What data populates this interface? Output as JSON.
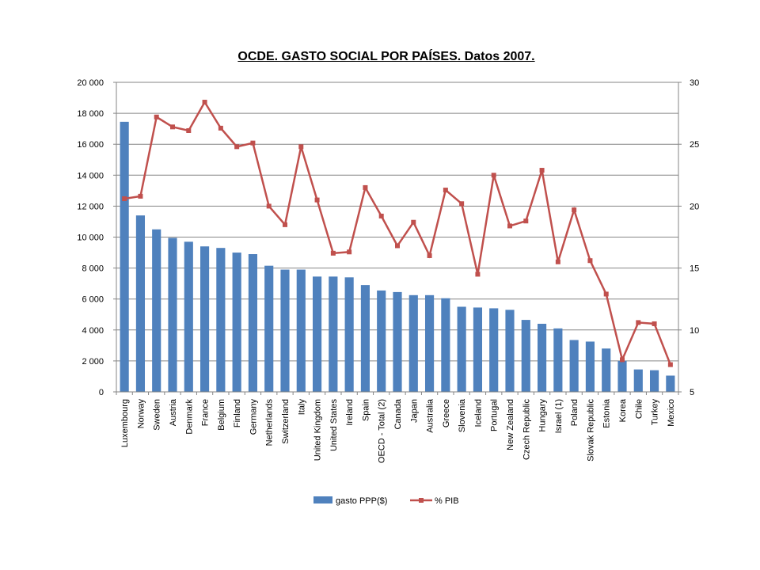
{
  "chart_data": {
    "type": "bar",
    "title": "OCDE. GASTO SOCIAL POR PAÍSES. Datos 2007.",
    "xlabel": "",
    "ylabel": "",
    "categories": [
      "Luxembourg",
      "Norway",
      "Sweden",
      "Austria",
      "Denmark",
      "France",
      "Belgium",
      "Finland",
      "Germany",
      "Netherlands",
      "Switzerland",
      "Italy",
      "United Kingdom",
      "United States",
      "Ireland",
      "Spain",
      "OECD - Total  (2)",
      "Canada",
      "Japan",
      "Australia",
      "Greece",
      "Slovenia",
      "Iceland",
      "Portugal",
      "New Zealand",
      "Czech Republic",
      "Hungary",
      "Israel  (1)",
      "Poland",
      "Slovak Republic",
      "Estonia",
      "Korea",
      "Chile",
      "Turkey",
      "Mexico"
    ],
    "series": [
      {
        "name": "gasto PPP($)",
        "kind": "bar",
        "axis": "left",
        "color": "#4F81BD",
        "values": [
          17450,
          11400,
          10500,
          9950,
          9700,
          9400,
          9300,
          9000,
          8900,
          8150,
          7900,
          7900,
          7450,
          7450,
          7400,
          6900,
          6550,
          6450,
          6250,
          6250,
          6050,
          5500,
          5450,
          5400,
          5300,
          4650,
          4400,
          4100,
          3350,
          3250,
          2800,
          2000,
          1450,
          1400,
          1050
        ]
      },
      {
        "name": "% PIB",
        "kind": "line",
        "axis": "right",
        "color": "#C0504D",
        "values": [
          20.6,
          20.8,
          27.2,
          26.4,
          26.1,
          28.4,
          26.3,
          24.8,
          25.1,
          20.0,
          18.5,
          24.8,
          20.5,
          16.2,
          16.3,
          21.5,
          19.2,
          16.8,
          18.7,
          16.0,
          21.3,
          20.2,
          14.5,
          22.5,
          18.4,
          18.8,
          22.9,
          15.5,
          19.7,
          15.6,
          12.9,
          7.6,
          10.6,
          10.5,
          7.2
        ]
      }
    ],
    "y_left": {
      "ylim": [
        0,
        20000
      ],
      "ticks": [
        "0",
        "2 000",
        "4 000",
        "6 000",
        "8 000",
        "10 000",
        "12 000",
        "14 000",
        "16 000",
        "18 000",
        "20 000"
      ]
    },
    "y_right": {
      "ylim": [
        5,
        30
      ],
      "ticks": [
        "5",
        "10",
        "15",
        "20",
        "25",
        "30"
      ]
    },
    "grid": true,
    "legend_position": "bottom"
  }
}
